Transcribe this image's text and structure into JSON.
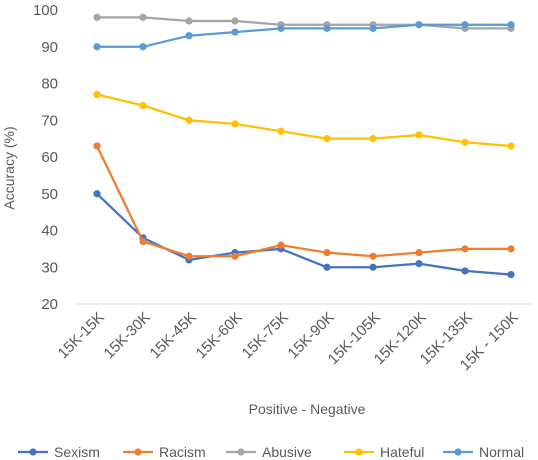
{
  "chart_data": {
    "type": "line",
    "title": "",
    "xlabel": "Positive - Negative",
    "ylabel": "Accuracy (%)",
    "ylim": [
      20,
      100
    ],
    "yticks": [
      20,
      30,
      40,
      50,
      60,
      70,
      80,
      90,
      100
    ],
    "grid": false,
    "legend_position": "bottom",
    "categories": [
      "15K-15K",
      "15K-30K",
      "15K-45K",
      "15K-60K",
      "15K-75K",
      "15K-90K",
      "15K-105K",
      "15K-120K",
      "15K-135K",
      "15K - 150K"
    ],
    "series": [
      {
        "name": "Sexism",
        "color": "#4472C4",
        "values": [
          50,
          38,
          32,
          34,
          35,
          30,
          30,
          31,
          29,
          28
        ]
      },
      {
        "name": "Racism",
        "color": "#ED7D31",
        "values": [
          63,
          37,
          33,
          33,
          36,
          34,
          33,
          34,
          35,
          35
        ]
      },
      {
        "name": "Abusive",
        "color": "#A5A5A5",
        "values": [
          98,
          98,
          97,
          97,
          96,
          96,
          96,
          96,
          95,
          95
        ]
      },
      {
        "name": "Hateful",
        "color": "#FFC000",
        "values": [
          77,
          74,
          70,
          69,
          67,
          65,
          65,
          66,
          64,
          63
        ]
      },
      {
        "name": "Normal",
        "color": "#5B9BD5",
        "values": [
          90,
          90,
          93,
          94,
          95,
          95,
          95,
          96,
          96,
          96
        ]
      }
    ]
  }
}
